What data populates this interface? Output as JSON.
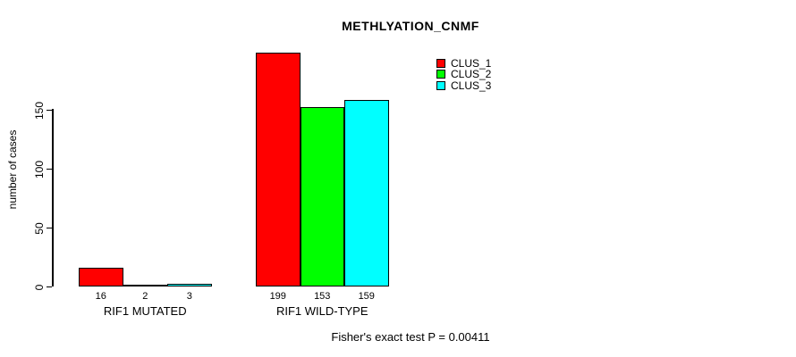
{
  "title": "METHLYATION_CNMF",
  "ylabel": "number of cases",
  "footnote": "Fisher's exact test P = 0.00411",
  "legend": {
    "position": "top-right",
    "items": [
      {
        "label": "CLUS_1",
        "color": "#FF0000"
      },
      {
        "label": "CLUS_2",
        "color": "#00FF00"
      },
      {
        "label": "CLUS_3",
        "color": "#00FFFF"
      }
    ]
  },
  "chart_data": {
    "type": "bar",
    "title": "METHLYATION_CNMF",
    "xlabel": "",
    "ylabel": "number of cases",
    "categories": [
      "RIF1 MUTATED",
      "RIF1 WILD-TYPE"
    ],
    "series": [
      {
        "name": "CLUS_1",
        "color": "#FF0000",
        "values": [
          16,
          199
        ]
      },
      {
        "name": "CLUS_2",
        "color": "#00FF00",
        "values": [
          2,
          153
        ]
      },
      {
        "name": "CLUS_3",
        "color": "#00FFFF",
        "values": [
          3,
          159
        ]
      }
    ],
    "yticks": [
      0,
      50,
      100,
      150
    ],
    "ylim": [
      0,
      150
    ],
    "grid": false,
    "bar_value_labels": [
      [
        16,
        2,
        3
      ],
      [
        199,
        153,
        159
      ]
    ],
    "legend_position": "top-right",
    "annotation": "Fisher's exact test P = 0.00411"
  }
}
